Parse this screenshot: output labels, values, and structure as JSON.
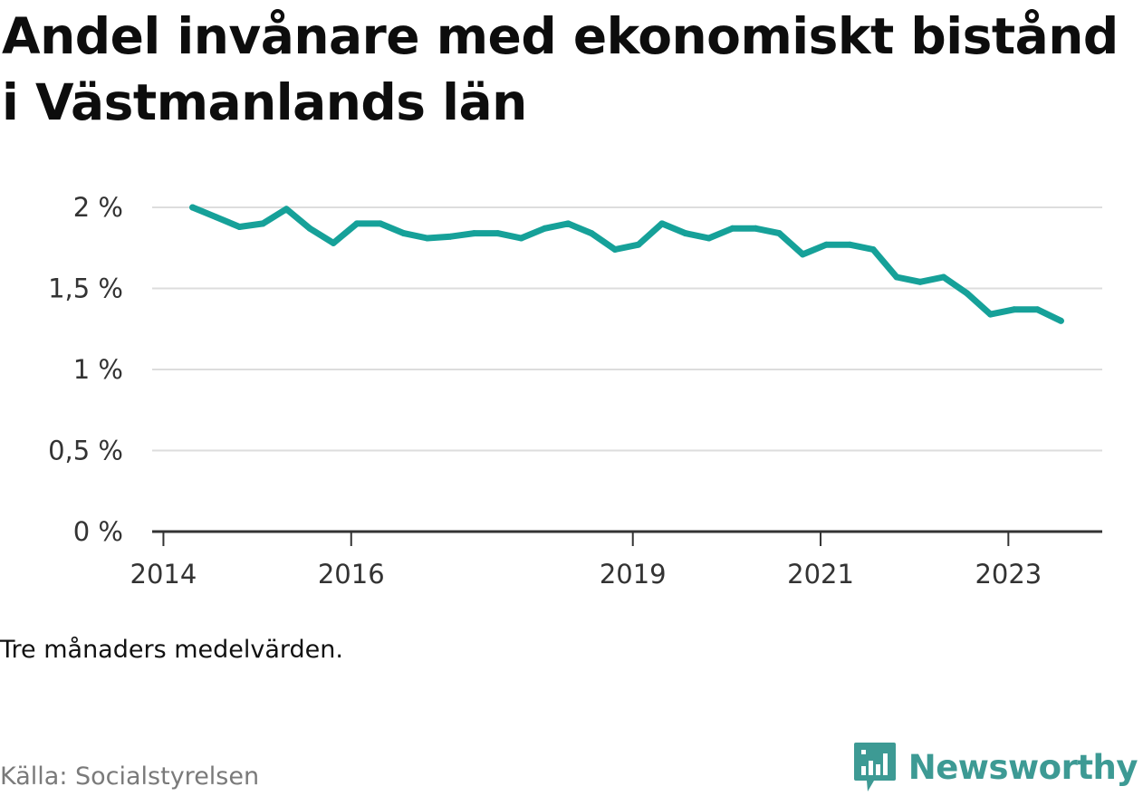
{
  "title": "Andel invånare med ekonomiskt bistånd i Västmanlands län",
  "note": "Tre månaders medelvärden.",
  "source": "Källa: Socialstyrelsen",
  "brand": {
    "name": "Newsworthy",
    "icon": "newsworthy-logo-icon",
    "color": "#3d9a94"
  },
  "colors": {
    "line": "#16a199",
    "grid": "#dddddd",
    "axis": "#333333"
  },
  "chart_data": {
    "type": "line",
    "title": "Andel invånare med ekonomiskt bistånd i Västmanlands län",
    "xlabel": "",
    "ylabel": "",
    "ylim": [
      0,
      2
    ],
    "yticks": [
      {
        "value": 0,
        "label": "0 %"
      },
      {
        "value": 0.5,
        "label": "0,5 %"
      },
      {
        "value": 1,
        "label": "1 %"
      },
      {
        "value": 1.5,
        "label": "1,5 %"
      },
      {
        "value": 2,
        "label": "2 %"
      }
    ],
    "xlim": [
      2013.88,
      2024.0
    ],
    "xticks": [
      {
        "value": 2014,
        "label": "2014"
      },
      {
        "value": 2016,
        "label": "2016"
      },
      {
        "value": 2019,
        "label": "2019"
      },
      {
        "value": 2021,
        "label": "2021"
      },
      {
        "value": 2023,
        "label": "2023"
      }
    ],
    "grid": true,
    "series": [
      {
        "x": [
          2014.31,
          2014.56,
          2014.81,
          2015.06,
          2015.31,
          2015.56,
          2015.81,
          2016.06,
          2016.31,
          2016.56,
          2016.81,
          2017.06,
          2017.31,
          2017.56,
          2017.81,
          2018.06,
          2018.31,
          2018.56,
          2018.81,
          2019.06,
          2019.31,
          2019.56,
          2019.81,
          2020.06,
          2020.31,
          2020.56,
          2020.81,
          2021.06,
          2021.31,
          2021.56,
          2021.81,
          2022.06,
          2022.31,
          2022.56,
          2022.81,
          2023.06,
          2023.31,
          2023.56
        ],
        "values": [
          2.0,
          1.94,
          1.88,
          1.9,
          1.99,
          1.87,
          1.78,
          1.9,
          1.9,
          1.84,
          1.81,
          1.82,
          1.84,
          1.84,
          1.81,
          1.87,
          1.9,
          1.84,
          1.74,
          1.77,
          1.9,
          1.84,
          1.81,
          1.87,
          1.87,
          1.84,
          1.71,
          1.77,
          1.77,
          1.74,
          1.57,
          1.54,
          1.57,
          1.47,
          1.34,
          1.37,
          1.37,
          1.3
        ]
      }
    ]
  }
}
